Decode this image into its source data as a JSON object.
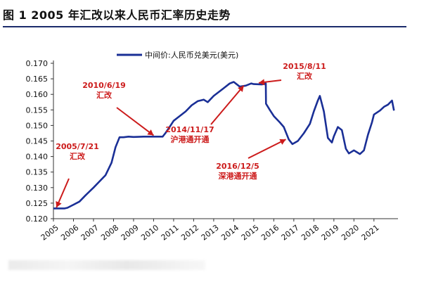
{
  "title": "图 1 2005 年汇改以来人民币汇率历史走势",
  "chart_data": {
    "type": "line",
    "title": "图 1 2005 年汇改以来人民币汇率历史走势",
    "xlabel": "",
    "ylabel": "",
    "xlim": [
      2005.0,
      2022.2
    ],
    "ylim": [
      0.12,
      0.17
    ],
    "yticks": [
      "0.120",
      "0.125",
      "0.130",
      "0.135",
      "0.140",
      "0.145",
      "0.150",
      "0.155",
      "0.160",
      "0.165",
      "0.170"
    ],
    "xticks": [
      "2005",
      "2006",
      "2007",
      "2008",
      "2009",
      "2010",
      "2011",
      "2012",
      "2013",
      "2014",
      "2015",
      "2016",
      "2017",
      "2018",
      "2019",
      "2020",
      "2021"
    ],
    "grid": false,
    "legend_position": "top",
    "color": "#1a2f96",
    "series": [
      {
        "name": "中间价:人民币兑美元(美元)",
        "x": [
          2005.0,
          2005.56,
          2005.7,
          2006.0,
          2006.3,
          2006.6,
          2007.0,
          2007.3,
          2007.6,
          2007.9,
          2008.1,
          2008.3,
          2008.5,
          2008.75,
          2009.0,
          2009.5,
          2010.0,
          2010.45,
          2010.6,
          2010.8,
          2011.0,
          2011.3,
          2011.6,
          2011.9,
          2012.2,
          2012.5,
          2012.7,
          2013.0,
          2013.2,
          2013.5,
          2013.8,
          2014.0,
          2014.3,
          2014.6,
          2014.87,
          2015.0,
          2015.4,
          2015.6,
          2015.61,
          2015.8,
          2016.0,
          2016.3,
          2016.5,
          2016.75,
          2016.93,
          2017.2,
          2017.5,
          2017.8,
          2018.0,
          2018.2,
          2018.3,
          2018.5,
          2018.7,
          2018.9,
          2019.0,
          2019.2,
          2019.4,
          2019.6,
          2019.75,
          2020.0,
          2020.3,
          2020.5,
          2020.7,
          2020.9,
          2021.0,
          2021.3,
          2021.5,
          2021.7,
          2021.9,
          2022.0
        ],
        "y": [
          0.1233,
          0.1233,
          0.1235,
          0.1245,
          0.1255,
          0.1275,
          0.13,
          0.132,
          0.134,
          0.138,
          0.143,
          0.1462,
          0.1462,
          0.1464,
          0.1463,
          0.1464,
          0.1464,
          0.1464,
          0.1476,
          0.1495,
          0.1515,
          0.153,
          0.1545,
          0.1565,
          0.1578,
          0.1583,
          0.1575,
          0.1595,
          0.1605,
          0.162,
          0.1635,
          0.164,
          0.1625,
          0.1628,
          0.1635,
          0.1633,
          0.1632,
          0.1635,
          0.157,
          0.155,
          0.153,
          0.151,
          0.1495,
          0.1455,
          0.144,
          0.145,
          0.1475,
          0.1505,
          0.1545,
          0.158,
          0.1595,
          0.1545,
          0.146,
          0.1445,
          0.1465,
          0.1495,
          0.1485,
          0.1425,
          0.141,
          0.142,
          0.1408,
          0.142,
          0.147,
          0.151,
          0.1535,
          0.1548,
          0.156,
          0.1567,
          0.158,
          0.1548
        ]
      }
    ],
    "annotations": [
      {
        "lines": [
          "2005/7/21",
          "汇改"
        ],
        "x": 2005.56,
        "y": 0.1233
      },
      {
        "lines": [
          "2010/6/19",
          "汇改"
        ],
        "x": 2010.47,
        "y": 0.1464
      },
      {
        "lines": [
          "2014/11/17",
          "沪港通开通"
        ],
        "x": 2014.87,
        "y": 0.1635
      },
      {
        "lines": [
          "2015/8/11",
          "汇改"
        ],
        "x": 2015.61,
        "y": 0.1635
      },
      {
        "lines": [
          "2016/12/5",
          "深港通开通"
        ],
        "x": 2016.93,
        "y": 0.144
      }
    ]
  }
}
